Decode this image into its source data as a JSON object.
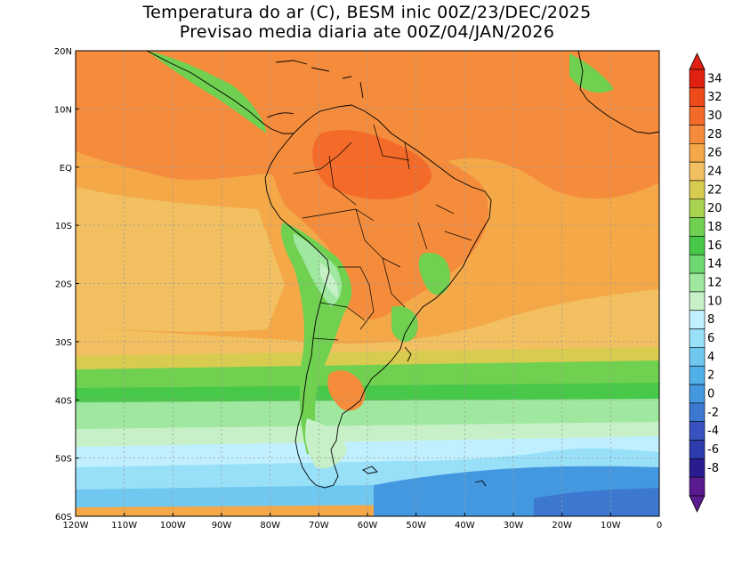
{
  "title": {
    "line1": "Temperatura do ar (C), BESM inic 00Z/23/DEC/2025",
    "line2": "Previsao media diaria ate 00Z/04/JAN/2026"
  },
  "axes": {
    "lon_labels": [
      "120W",
      "110W",
      "100W",
      "90W",
      "80W",
      "70W",
      "60W",
      "50W",
      "40W",
      "30W",
      "20W",
      "10W",
      "0"
    ],
    "lat_labels": [
      "20N",
      "10N",
      "EQ",
      "10S",
      "20S",
      "30S",
      "40S",
      "50S",
      "60S"
    ]
  },
  "colorbar": {
    "levels": [
      "34",
      "32",
      "30",
      "28",
      "26",
      "24",
      "22",
      "20",
      "18",
      "16",
      "14",
      "12",
      "10",
      "8",
      "6",
      "4",
      "2",
      "0",
      "-2",
      "-4",
      "-6",
      "-8"
    ],
    "colors": [
      "#e02010",
      "#ee4a1a",
      "#f46a28",
      "#f48c3c",
      "#f4a848",
      "#f2c060",
      "#d8cc50",
      "#a8d450",
      "#70d050",
      "#48c848",
      "#70d870",
      "#a0e8a0",
      "#c8f0c8",
      "#c0f0ff",
      "#98e0f8",
      "#70c8f0",
      "#50b0e8",
      "#4498e0",
      "#3c78d0",
      "#3850c0",
      "#2c3cac",
      "#281c90",
      "#5a1a90"
    ],
    "top_color": "#e02010",
    "bottom_color": "#5a1a90"
  },
  "map_colors": {
    "hot": "#f48c3c",
    "hotter": "#f46a28",
    "warm": "#f4a848",
    "mild": "#f2c060",
    "cool_green": "#70d050",
    "green": "#48c848",
    "light_green": "#a0e8a0",
    "pale": "#c8f0c8",
    "light_blue": "#98e0f8",
    "blue": "#50b0e8",
    "deep_blue": "#4498e0",
    "coast": "#000000",
    "grid": "#9a9a9a"
  }
}
